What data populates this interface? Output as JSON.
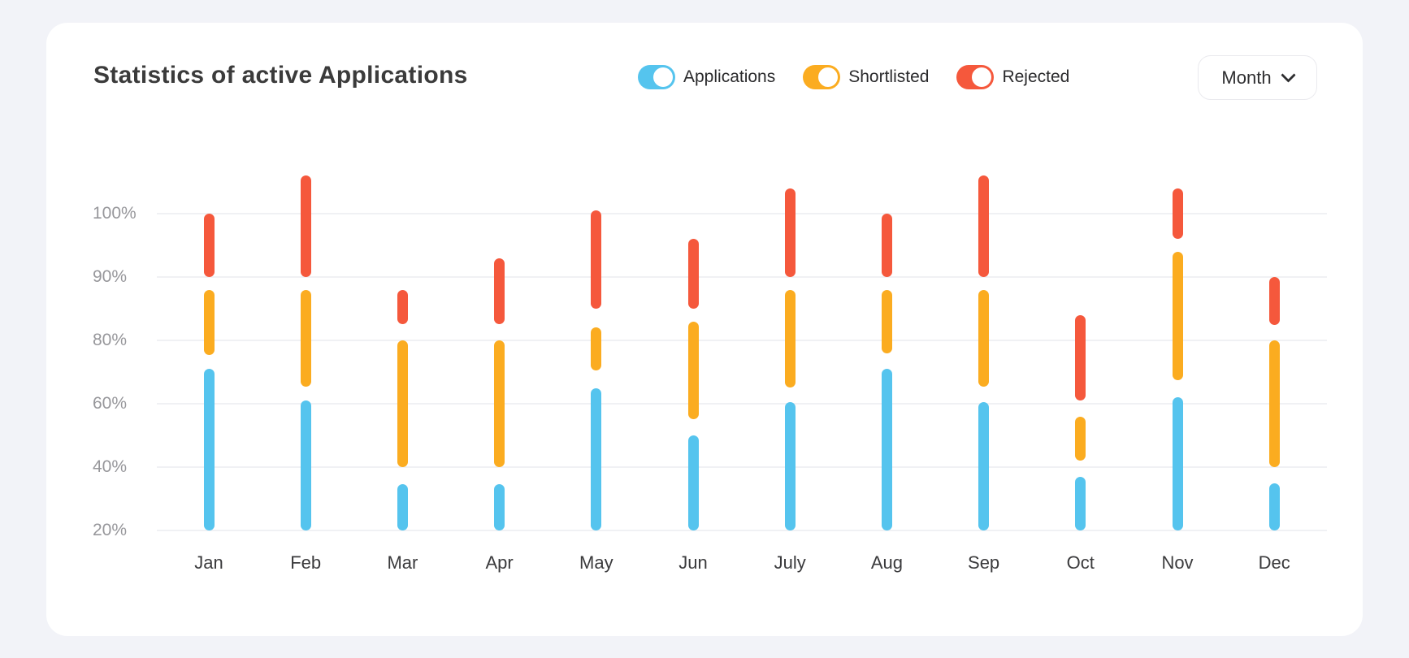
{
  "header": {
    "title": "Statistics of active Applications",
    "period_selector": {
      "label": "Month"
    }
  },
  "legend": [
    {
      "id": "applications",
      "label": "Applications",
      "color": "#55C4EE",
      "state": "on"
    },
    {
      "id": "shortlisted",
      "label": "Shortlisted",
      "color": "#FBAC20",
      "state": "on"
    },
    {
      "id": "rejected",
      "label": "Rejected",
      "color": "#F5583C",
      "state": "on"
    }
  ],
  "chart_data": {
    "type": "bar",
    "variant": "floating-range-columns",
    "title": "Statistics of active Applications",
    "categories": [
      "Jan",
      "Feb",
      "Mar",
      "Apr",
      "May",
      "Jun",
      "July",
      "Aug",
      "Sep",
      "Oct",
      "Nov",
      "Dec"
    ],
    "unit": "%",
    "y_ticks": [
      "100%",
      "90%",
      "80%",
      "60%",
      "40%",
      "20%"
    ],
    "y_tick_values": [
      100,
      90,
      80,
      60,
      40,
      20
    ],
    "axis_note": "ticks evenly spaced on screen; 20-80 in steps of 20, 80-100 in steps of 10 (nonlinear axis), columns may exceed 100%",
    "ylim": [
      20,
      110
    ],
    "grid": true,
    "legend_position": "top",
    "series": [
      {
        "name": "Applications",
        "color": "#55C4EE",
        "ranges": [
          [
            20,
            71
          ],
          [
            20,
            61
          ],
          [
            20,
            34.5
          ],
          [
            20,
            34.5
          ],
          [
            20,
            65
          ],
          [
            20,
            50
          ],
          [
            20,
            60.5
          ],
          [
            20,
            71
          ],
          [
            20,
            60.5
          ],
          [
            20,
            37
          ],
          [
            20,
            62
          ],
          [
            20,
            35
          ]
        ]
      },
      {
        "name": "Shortlisted",
        "color": "#FBAC20",
        "ranges": [
          [
            75.5,
            88
          ],
          [
            65.5,
            88
          ],
          [
            40,
            80
          ],
          [
            40,
            80
          ],
          [
            70.5,
            82
          ],
          [
            55,
            83
          ],
          [
            65,
            88
          ],
          [
            76,
            88
          ],
          [
            65.5,
            88
          ],
          [
            42,
            56
          ],
          [
            67.5,
            94
          ],
          [
            40,
            80
          ]
        ]
      },
      {
        "name": "Rejected",
        "color": "#F5583C",
        "ranges": [
          [
            90,
            100
          ],
          [
            90,
            106
          ],
          [
            82.5,
            88
          ],
          [
            82.5,
            93
          ],
          [
            85,
            100.5
          ],
          [
            85,
            96
          ],
          [
            90,
            104
          ],
          [
            90,
            100
          ],
          [
            90,
            106
          ],
          [
            61,
            84
          ],
          [
            96,
            104
          ],
          [
            82.5,
            90
          ]
        ]
      }
    ]
  }
}
